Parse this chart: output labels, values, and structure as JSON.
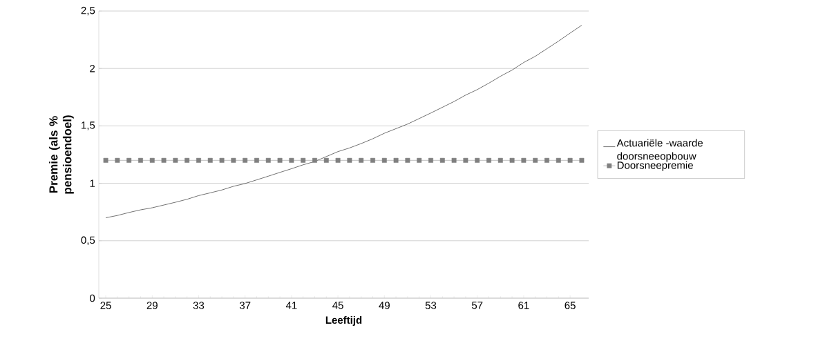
{
  "chart_data": {
    "type": "line",
    "xlabel": "Leeftijd",
    "ylabel": "Premie (als % pensioendoel)",
    "x": [
      25,
      26,
      27,
      28,
      29,
      30,
      31,
      32,
      33,
      34,
      35,
      36,
      37,
      38,
      39,
      40,
      41,
      42,
      43,
      44,
      45,
      46,
      47,
      48,
      49,
      50,
      51,
      52,
      53,
      54,
      55,
      56,
      57,
      58,
      59,
      60,
      61,
      62,
      63,
      64,
      65,
      66
    ],
    "series": [
      {
        "name": "Actuariële -waarde doorsneeopbouw",
        "color": "#333333",
        "marker": "none",
        "values": [
          0.7,
          0.72,
          0.746,
          0.769,
          0.787,
          0.811,
          0.835,
          0.861,
          0.893,
          0.917,
          0.942,
          0.974,
          0.998,
          1.03,
          1.062,
          1.095,
          1.127,
          1.161,
          1.19,
          1.233,
          1.276,
          1.308,
          1.346,
          1.388,
          1.436,
          1.476,
          1.516,
          1.564,
          1.612,
          1.662,
          1.712,
          1.768,
          1.816,
          1.872,
          1.932,
          1.986,
          2.052,
          2.106,
          2.172,
          2.238,
          2.308,
          2.376
        ]
      },
      {
        "name": "Doorsneepremie",
        "color": "#808080",
        "marker": "square",
        "values": [
          1.2,
          1.2,
          1.2,
          1.2,
          1.2,
          1.2,
          1.2,
          1.2,
          1.2,
          1.2,
          1.2,
          1.2,
          1.2,
          1.2,
          1.2,
          1.2,
          1.2,
          1.2,
          1.2,
          1.2,
          1.2,
          1.2,
          1.2,
          1.2,
          1.2,
          1.2,
          1.2,
          1.2,
          1.2,
          1.2,
          1.2,
          1.2,
          1.2,
          1.2,
          1.2,
          1.2,
          1.2,
          1.2,
          1.2,
          1.2,
          1.2,
          1.2
        ]
      }
    ],
    "xlim": [
      24.4,
      66.6
    ],
    "xticks": [
      25,
      29,
      33,
      37,
      41,
      45,
      49,
      53,
      57,
      61,
      65
    ],
    "ylim": [
      0,
      2.5
    ],
    "yticks": [
      0,
      {
        "value": 0.5,
        "label": "0,5"
      },
      1,
      {
        "value": 1.5,
        "label": "1,5"
      },
      2,
      {
        "value": 2.5,
        "label": "2,5"
      }
    ],
    "grid": "y",
    "legend": "right"
  }
}
